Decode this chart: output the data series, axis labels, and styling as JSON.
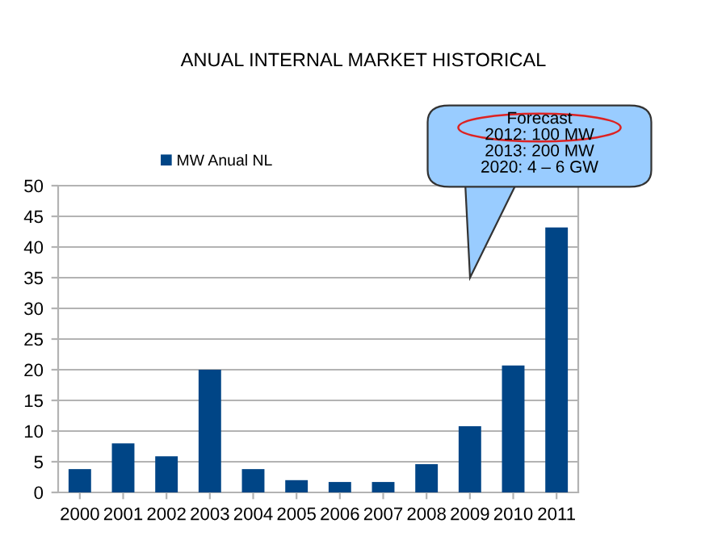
{
  "chart_data": {
    "type": "bar",
    "title": "ANUAL INTERNAL MARKET HISTORICAL",
    "categories": [
      "2000",
      "2001",
      "2002",
      "2003",
      "2004",
      "2005",
      "2006",
      "2007",
      "2008",
      "2009",
      "2010",
      "2011"
    ],
    "series": [
      {
        "name": "MW Anual NL",
        "color": "#004586",
        "values": [
          3.8,
          8,
          5.9,
          20,
          3.8,
          2,
          1.7,
          1.7,
          4.6,
          10.8,
          20.7,
          43.2
        ]
      }
    ],
    "ylim": [
      0,
      50
    ],
    "yticks": [
      0,
      5,
      10,
      15,
      20,
      25,
      30,
      35,
      40,
      45,
      50
    ],
    "grid": "y",
    "legend": "top",
    "annotations": [
      "Forecast\n2012: 100 MW\n2013: 200 MW\n2020: 4 – 6 GW"
    ]
  }
}
